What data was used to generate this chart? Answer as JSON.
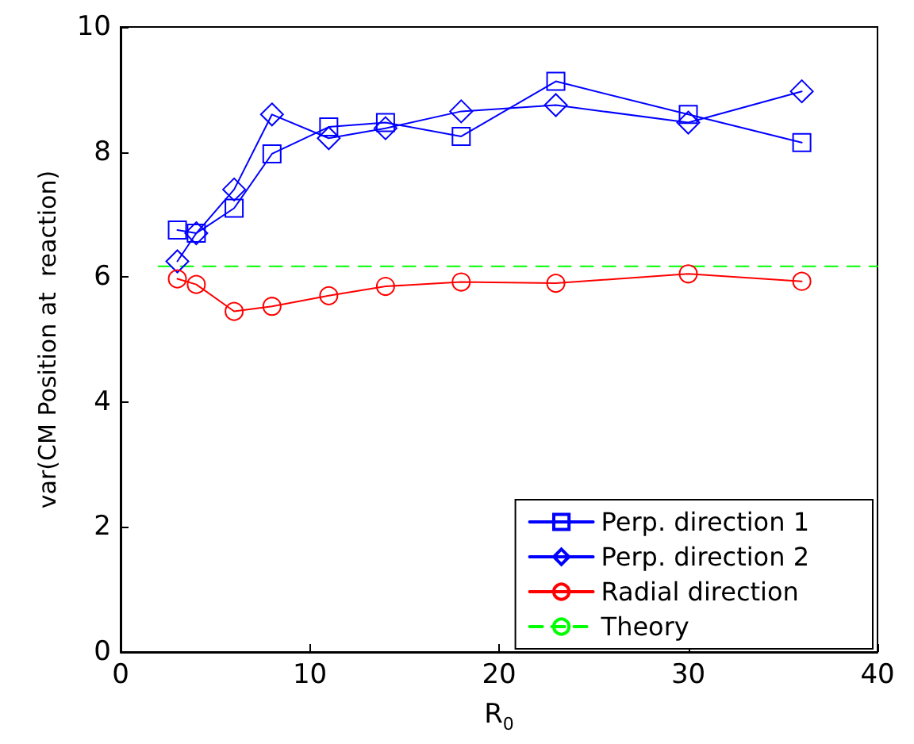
{
  "chart_data": {
    "type": "line",
    "xlabel": "R$_{0}$",
    "ylabel": "var(CM Position at  reaction)",
    "x": [
      3,
      4,
      6,
      8,
      11,
      14,
      18,
      23,
      30,
      36
    ],
    "series": [
      {
        "name": "Perp. direction 1",
        "color": "#0000ff",
        "marker": "square",
        "line_style": "solid",
        "values": [
          6.75,
          6.7,
          7.1,
          7.97,
          8.4,
          8.47,
          8.25,
          9.13,
          8.6,
          8.15
        ]
      },
      {
        "name": "Perp. direction 2",
        "color": "#0000ff",
        "marker": "diamond",
        "line_style": "solid",
        "values": [
          6.25,
          6.7,
          7.4,
          8.6,
          8.22,
          8.38,
          8.65,
          8.75,
          8.47,
          8.97
        ]
      },
      {
        "name": "Radial direction",
        "color": "#ff0000",
        "marker": "circle",
        "line_style": "solid",
        "values": [
          5.97,
          5.88,
          5.45,
          5.53,
          5.7,
          5.85,
          5.92,
          5.9,
          6.05,
          5.93
        ]
      },
      {
        "name": "Theory",
        "color": "#00ff00",
        "marker": "none",
        "line_style": "dashed",
        "x": [
          2,
          40
        ],
        "values": [
          6.17,
          6.17
        ]
      }
    ],
    "xlim": [
      0,
      40
    ],
    "xticks": [
      0,
      10,
      20,
      30,
      40
    ],
    "ylim": [
      0,
      10
    ],
    "yticks": [
      0,
      2,
      4,
      6,
      8,
      10
    ],
    "grid": false,
    "legend": "bottom right"
  }
}
